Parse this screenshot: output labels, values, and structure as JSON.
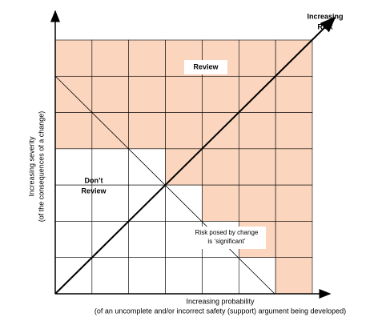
{
  "diagram": {
    "risk_axis": {
      "line1": "Increasing",
      "line2": "Risk"
    },
    "y_axis": {
      "line1": "Increasing severity",
      "line2": "(of the consequences of a change)"
    },
    "x_axis": {
      "line1": "Increasing probability",
      "line2": "(of an uncomplete and/or incorrect  safety (support) argument being developed)"
    },
    "regions": {
      "review": "Review",
      "dont_review": {
        "line1": "Don’t",
        "line2": "Review"
      },
      "significant": {
        "line1": "Risk posed by change",
        "line2": "is ‘significant’"
      }
    }
  }
}
